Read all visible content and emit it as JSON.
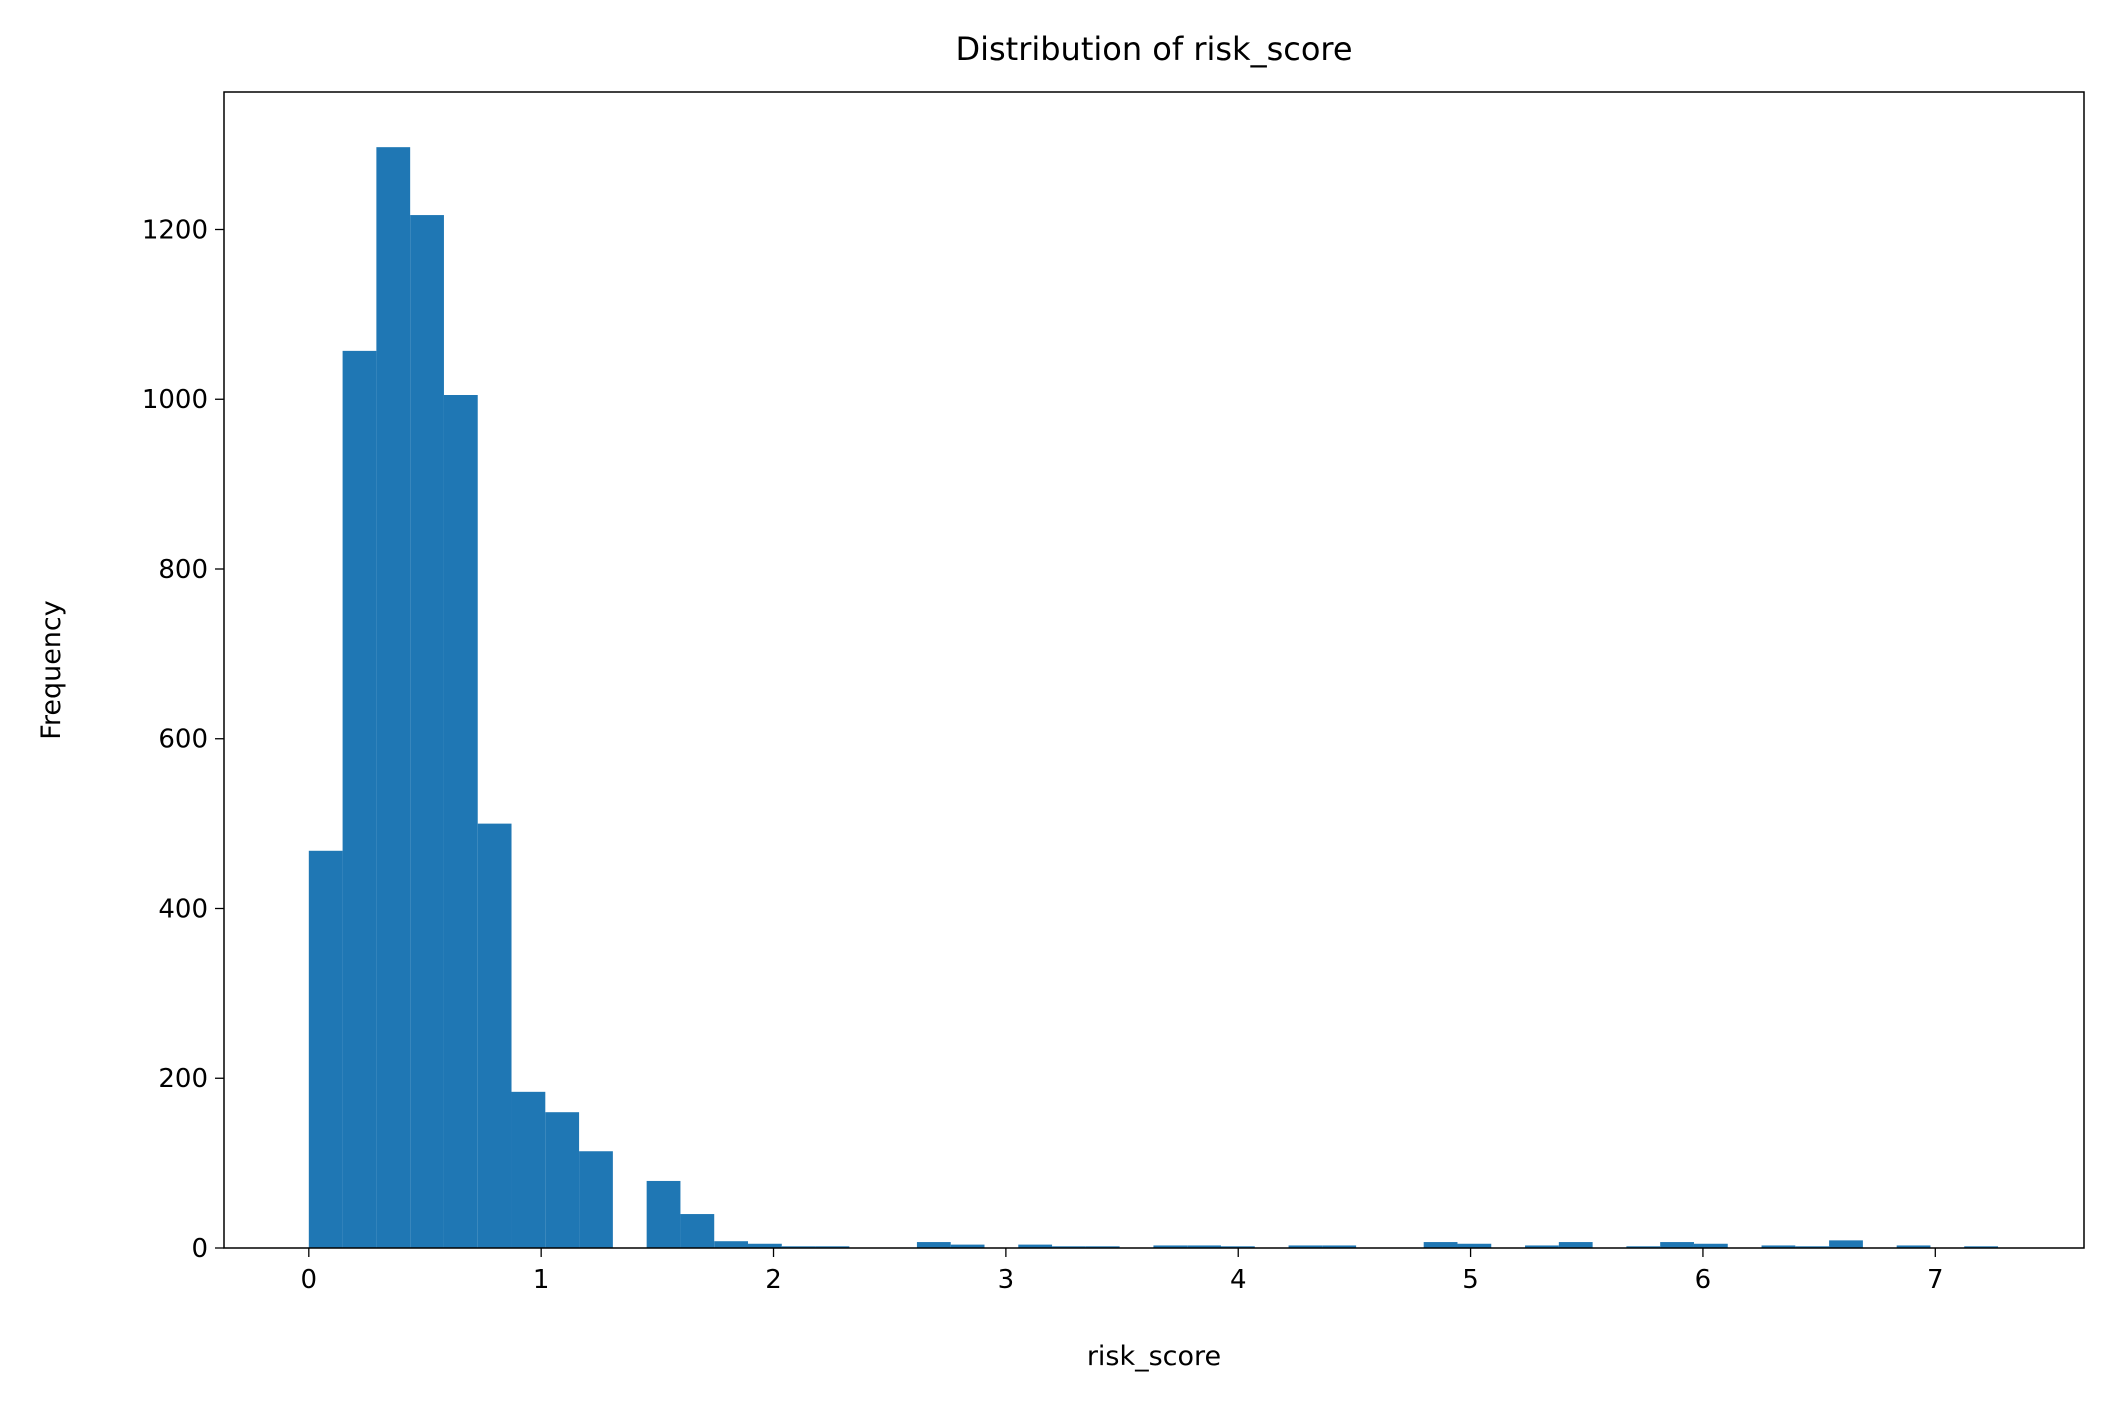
{
  "chart_data": {
    "type": "histogram",
    "title": "Distribution of risk_score",
    "xlabel": "risk_score",
    "ylabel": "Frequency",
    "color": "#1f77b4",
    "bins": [
      0,
      0.1454,
      0.2908,
      0.4362,
      0.5816,
      0.727,
      0.8724,
      1.0178,
      1.1632,
      1.3086,
      1.454,
      1.5994,
      1.7448,
      1.8902,
      2.0356,
      2.181,
      2.3264,
      2.4718,
      2.6172,
      2.7626,
      2.908,
      3.0534,
      3.1988,
      3.3442,
      3.4896,
      3.635,
      3.7804,
      3.9258,
      4.0712,
      4.2166,
      4.362,
      4.5074,
      4.6528,
      4.7982,
      4.9436,
      5.089,
      5.2344,
      5.3798,
      5.5252,
      5.6706,
      5.816,
      5.9614,
      6.1068,
      6.2522,
      6.3976,
      6.543,
      6.6884,
      6.8338,
      6.9792,
      7.1246,
      7.27
    ],
    "counts": [
      468,
      1057,
      1297,
      1217,
      1005,
      500,
      184,
      160,
      114,
      0,
      79,
      40,
      8,
      5,
      2,
      2,
      0,
      0,
      7,
      4,
      0,
      4,
      2,
      2,
      0,
      3,
      3,
      2,
      0,
      3,
      3,
      0,
      0,
      7,
      5,
      0,
      3,
      7,
      0,
      2,
      7,
      5,
      0,
      3,
      2,
      9,
      0,
      3,
      0,
      2
    ],
    "xlim": [
      -0.365,
      7.64
    ],
    "ylim": [
      0,
      1362
    ],
    "xticks": [
      0,
      1,
      2,
      3,
      4,
      5,
      6,
      7
    ],
    "yticks": [
      0,
      200,
      400,
      600,
      800,
      1000,
      1200
    ]
  }
}
